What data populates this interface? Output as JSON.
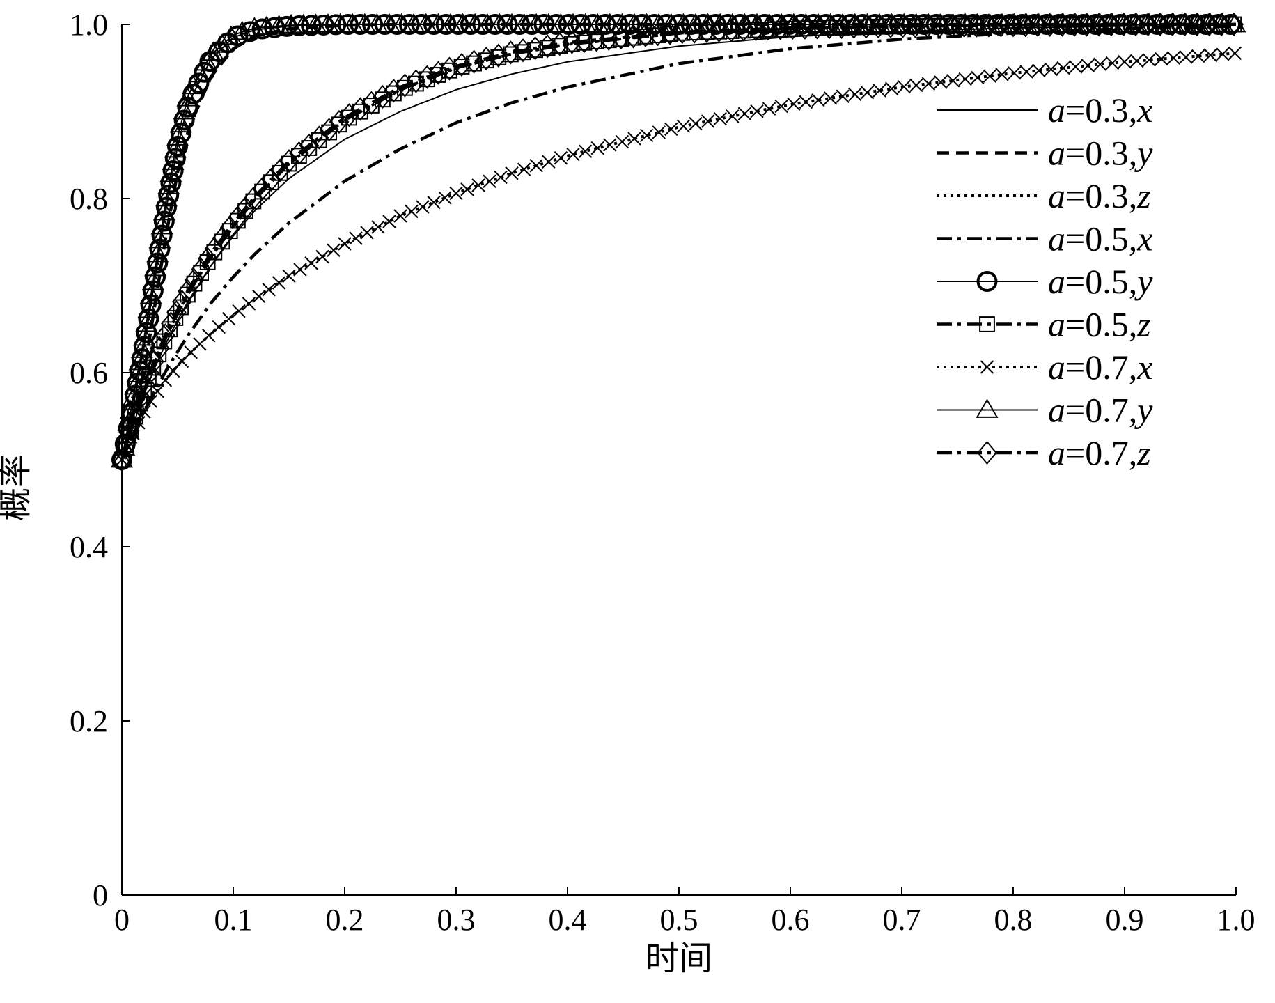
{
  "chart_data": {
    "type": "line",
    "xlabel": "时间",
    "ylabel": "概率",
    "xlim": [
      0,
      1.0
    ],
    "ylim": [
      0,
      1.0
    ],
    "xticks": [
      "0",
      "0.1",
      "0.2",
      "0.3",
      "0.4",
      "0.5",
      "0.6",
      "0.7",
      "0.8",
      "0.9",
      "1.0"
    ],
    "yticks": [
      "0",
      "0.2",
      "0.4",
      "0.6",
      "0.8",
      "1.0"
    ],
    "grid": false,
    "legend_position": "top-right",
    "x": [
      0,
      0.01,
      0.02,
      0.03,
      0.04,
      0.05,
      0.06,
      0.08,
      0.1,
      0.12,
      0.15,
      0.2,
      0.25,
      0.3,
      0.35,
      0.4,
      0.5,
      0.6,
      0.7,
      0.8,
      0.9,
      1.0
    ],
    "series": [
      {
        "name": "a=0.3,x",
        "marker": "none",
        "dash": "solid",
        "values": [
          0.5,
          0.54,
          0.575,
          0.607,
          0.635,
          0.66,
          0.683,
          0.723,
          0.757,
          0.787,
          0.823,
          0.868,
          0.9,
          0.925,
          0.943,
          0.957,
          0.975,
          0.986,
          0.992,
          0.996,
          0.998,
          0.999
        ]
      },
      {
        "name": "a=0.3,y",
        "marker": "none",
        "dash": "dash",
        "values": [
          0.5,
          0.55,
          0.6,
          0.68,
          0.76,
          0.83,
          0.88,
          0.94,
          0.972,
          0.987,
          0.995,
          0.999,
          1.0,
          1.0,
          1.0,
          1.0,
          1.0,
          1.0,
          1.0,
          1.0,
          1.0,
          1.0
        ]
      },
      {
        "name": "a=0.3,z",
        "marker": "none",
        "dash": "dot",
        "values": [
          0.5,
          0.543,
          0.58,
          0.613,
          0.642,
          0.668,
          0.692,
          0.733,
          0.768,
          0.8,
          0.84,
          0.89,
          0.925,
          0.95,
          0.966,
          0.977,
          0.99,
          0.995,
          0.998,
          0.999,
          1.0,
          1.0
        ]
      },
      {
        "name": "a=0.5,x",
        "marker": "none",
        "dash": "dashdot",
        "values": [
          0.5,
          0.528,
          0.555,
          0.58,
          0.603,
          0.624,
          0.644,
          0.68,
          0.71,
          0.737,
          0.772,
          0.82,
          0.857,
          0.887,
          0.91,
          0.928,
          0.955,
          0.972,
          0.983,
          0.99,
          0.995,
          0.998
        ]
      },
      {
        "name": "a=0.5,y",
        "marker": "circle",
        "dash": "solid",
        "values": [
          0.5,
          0.56,
          0.63,
          0.71,
          0.79,
          0.86,
          0.91,
          0.96,
          0.985,
          0.994,
          0.998,
          1.0,
          1.0,
          1.0,
          1.0,
          1.0,
          1.0,
          1.0,
          1.0,
          1.0,
          1.0,
          1.0
        ]
      },
      {
        "name": "a=0.5,z",
        "marker": "square",
        "dash": "dashdot",
        "values": [
          0.5,
          0.542,
          0.58,
          0.612,
          0.642,
          0.668,
          0.692,
          0.733,
          0.768,
          0.8,
          0.84,
          0.89,
          0.925,
          0.95,
          0.966,
          0.977,
          0.99,
          0.995,
          0.998,
          0.999,
          1.0,
          1.0
        ]
      },
      {
        "name": "a=0.7,x",
        "marker": "x",
        "dash": "dot",
        "values": [
          0.5,
          0.53,
          0.555,
          0.575,
          0.593,
          0.608,
          0.621,
          0.645,
          0.666,
          0.685,
          0.711,
          0.748,
          0.78,
          0.806,
          0.829,
          0.849,
          0.882,
          0.908,
          0.928,
          0.944,
          0.957,
          0.967
        ]
      },
      {
        "name": "a=0.7,y",
        "marker": "triangle",
        "dash": "solid",
        "values": [
          0.5,
          0.57,
          0.64,
          0.72,
          0.8,
          0.87,
          0.92,
          0.965,
          0.988,
          0.996,
          0.999,
          1.0,
          1.0,
          1.0,
          1.0,
          1.0,
          1.0,
          1.0,
          1.0,
          1.0,
          1.0,
          1.0
        ]
      },
      {
        "name": "a=0.7,z",
        "marker": "diamond",
        "dash": "dashdot",
        "values": [
          0.5,
          0.545,
          0.583,
          0.616,
          0.646,
          0.672,
          0.696,
          0.737,
          0.772,
          0.803,
          0.843,
          0.893,
          0.928,
          0.952,
          0.968,
          0.979,
          0.991,
          0.996,
          0.998,
          0.999,
          1.0,
          1.0
        ]
      }
    ]
  }
}
